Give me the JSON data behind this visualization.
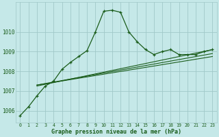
{
  "title": "Graphe pression niveau de la mer (hPa)",
  "background_color": "#c5e8e8",
  "grid_color": "#a0c8c8",
  "line_color": "#1a5c1a",
  "xlim": [
    -0.5,
    23.5
  ],
  "ylim": [
    1005.4,
    1011.5
  ],
  "yticks": [
    1006,
    1007,
    1008,
    1009,
    1010
  ],
  "xtick_labels": [
    "0",
    "1",
    "2",
    "3",
    "4",
    "5",
    "6",
    "7",
    "8",
    "9",
    "10",
    "11",
    "12",
    "13",
    "14",
    "15",
    "16",
    "17",
    "18",
    "19",
    "20",
    "21",
    "22",
    "23"
  ],
  "main_x": [
    0,
    1,
    2,
    3,
    4,
    5,
    6,
    7,
    8,
    9,
    10,
    11,
    12,
    13,
    14,
    15,
    16,
    17,
    18,
    19,
    20,
    21,
    22,
    23
  ],
  "main_y": [
    1005.75,
    1006.2,
    1006.75,
    1007.25,
    1007.5,
    1008.1,
    1008.45,
    1008.75,
    1009.05,
    1010.0,
    1011.05,
    1011.1,
    1011.0,
    1010.0,
    1009.5,
    1009.1,
    1008.85,
    1009.0,
    1009.1,
    1008.85,
    1008.85,
    1008.85,
    1009.0,
    1009.1
  ],
  "line1_x": [
    2,
    23
  ],
  "line1_y": [
    1007.3,
    1008.75
  ],
  "line2_x": [
    2,
    23
  ],
  "line2_y": [
    1007.3,
    1008.9
  ],
  "line3_x": [
    2,
    23
  ],
  "line3_y": [
    1007.25,
    1009.1
  ]
}
